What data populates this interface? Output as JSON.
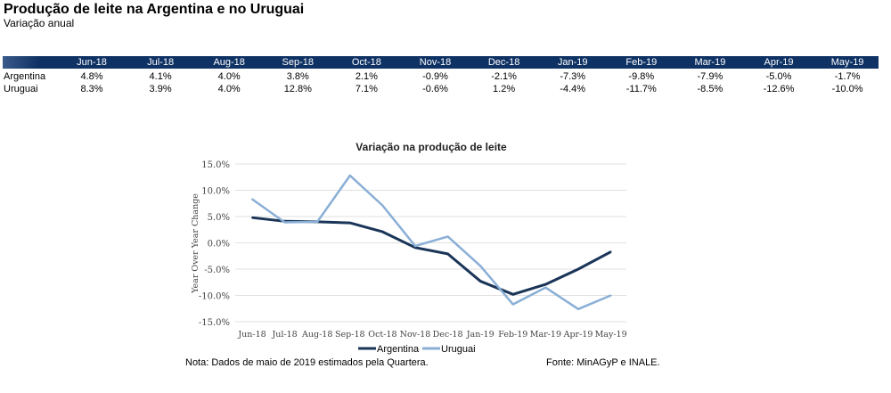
{
  "header": {
    "title": "Produção de leite na Argentina e no Uruguai",
    "subtitle": "Variação anual"
  },
  "table": {
    "columns": [
      "Jun-18",
      "Jul-18",
      "Aug-18",
      "Sep-18",
      "Oct-18",
      "Nov-18",
      "Dec-18",
      "Jan-19",
      "Feb-19",
      "Mar-19",
      "Apr-19",
      "May-19"
    ],
    "rows": [
      {
        "label": "Argentina",
        "values": [
          "4.8%",
          "4.1%",
          "4.0%",
          "3.8%",
          "2.1%",
          "-0.9%",
          "-2.1%",
          "-7.3%",
          "-9.8%",
          "-7.9%",
          "-5.0%",
          "-1.7%"
        ]
      },
      {
        "label": "Uruguai",
        "values": [
          "8.3%",
          "3.9%",
          "4.0%",
          "12.8%",
          "7.1%",
          "-0.6%",
          "1.2%",
          "-4.4%",
          "-11.7%",
          "-8.5%",
          "-12.6%",
          "-10.0%"
        ]
      }
    ],
    "header_color": "#0f3264"
  },
  "chart_data": {
    "type": "line",
    "title": "Variação na produção de leite",
    "ylabel": "Year Over Year Change",
    "xlabel": "",
    "categories": [
      "Jun-18",
      "Jul-18",
      "Aug-18",
      "Sep-18",
      "Oct-18",
      "Nov-18",
      "Dec-18",
      "Jan-19",
      "Feb-19",
      "Mar-19",
      "Apr-19",
      "May-19"
    ],
    "ylim": [
      -15,
      15
    ],
    "yticks": [
      "15.0%",
      "10.0%",
      "5.0%",
      "0.0%",
      "-5.0%",
      "-10.0%",
      "-15.0%"
    ],
    "grid": true,
    "legend_position": "bottom",
    "series": [
      {
        "name": "Argentina",
        "color": "#1a3558",
        "values": [
          4.8,
          4.1,
          4.0,
          3.8,
          2.1,
          -0.9,
          -2.1,
          -7.3,
          -9.8,
          -7.9,
          -5.0,
          -1.7
        ]
      },
      {
        "name": "Uruguai",
        "color": "#8aafd6",
        "values": [
          8.3,
          3.9,
          4.0,
          12.8,
          7.1,
          -0.6,
          1.2,
          -4.4,
          -11.7,
          -8.5,
          -12.6,
          -10.0
        ]
      }
    ]
  },
  "footer": {
    "note": "Nota: Dados de maio de 2019 estimados pela Quartera.",
    "source": "Fonte: MinAGyP e INALE."
  }
}
